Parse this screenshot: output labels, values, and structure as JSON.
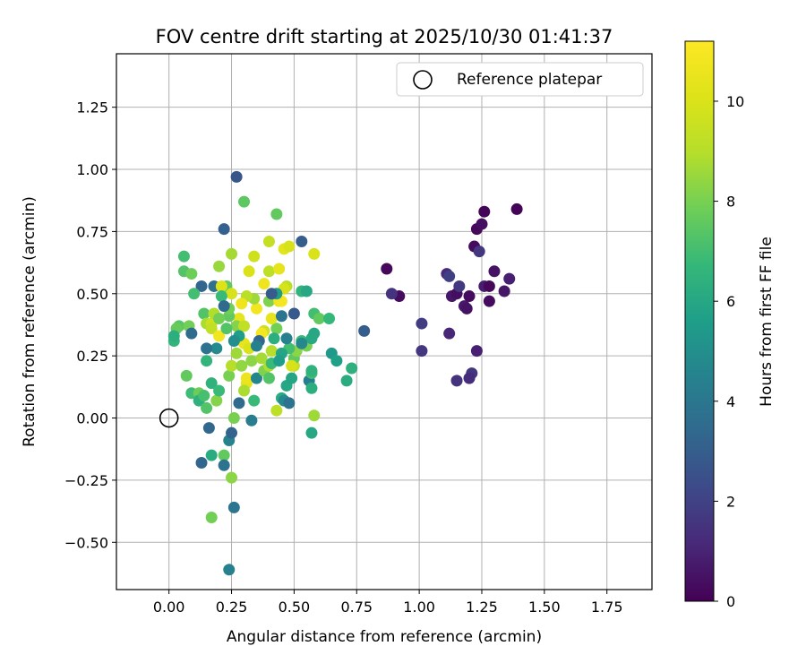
{
  "chart_data": {
    "type": "scatter",
    "title": "FOV centre drift starting at 2025/10/30 01:41:37",
    "xlabel": "Angular distance from reference (arcmin)",
    "ylabel": "Rotation from reference (arcmin)",
    "xlim": [
      -0.21,
      1.93
    ],
    "ylim": [
      -0.69,
      1.465
    ],
    "xticks": [
      0.0,
      0.25,
      0.5,
      0.75,
      1.0,
      1.25,
      1.5,
      1.75
    ],
    "xtick_labels": [
      "0.00",
      "0.25",
      "0.50",
      "0.75",
      "1.00",
      "1.25",
      "1.50",
      "1.75"
    ],
    "yticks": [
      -0.5,
      -0.25,
      0.0,
      0.25,
      0.5,
      0.75,
      1.0,
      1.25
    ],
    "ytick_labels": [
      "−0.50",
      "−0.25",
      "0.00",
      "0.25",
      "0.50",
      "0.75",
      "1.00",
      "1.25"
    ],
    "grid": true,
    "legend": {
      "label": "Reference platepar",
      "position": "top-right"
    },
    "reference": {
      "x": 0.0,
      "y": 0.0
    },
    "colorbar": {
      "label": "Hours from first FF file",
      "min": 0,
      "max": 11.2,
      "ticks": [
        0,
        2,
        4,
        6,
        8,
        10
      ],
      "tick_labels": [
        "0",
        "2",
        "4",
        "6",
        "8",
        "10"
      ],
      "colormap": "viridis"
    },
    "points": [
      [
        0.87,
        0.6,
        0.2
      ],
      [
        0.92,
        0.49,
        0.3
      ],
      [
        0.89,
        0.5,
        1.5
      ],
      [
        1.01,
        0.38,
        1.8
      ],
      [
        1.01,
        0.27,
        1.6
      ],
      [
        1.11,
        0.58,
        1.2
      ],
      [
        1.12,
        0.57,
        1.9
      ],
      [
        1.13,
        0.49,
        0.6
      ],
      [
        1.15,
        0.5,
        0.4
      ],
      [
        1.16,
        0.53,
        1.7
      ],
      [
        1.18,
        0.45,
        0.7
      ],
      [
        1.19,
        0.44,
        0.5
      ],
      [
        1.2,
        0.49,
        0.3
      ],
      [
        1.22,
        0.69,
        0.3
      ],
      [
        1.23,
        0.76,
        0.2
      ],
      [
        1.25,
        0.78,
        0.4
      ],
      [
        1.26,
        0.83,
        0.1
      ],
      [
        1.24,
        0.67,
        1.6
      ],
      [
        1.26,
        0.53,
        0.8
      ],
      [
        1.28,
        0.53,
        0.2
      ],
      [
        1.28,
        0.47,
        0.3
      ],
      [
        1.3,
        0.59,
        0.5
      ],
      [
        1.34,
        0.51,
        0.6
      ],
      [
        1.36,
        0.56,
        0.9
      ],
      [
        1.39,
        0.84,
        0.1
      ],
      [
        1.23,
        0.27,
        0.9
      ],
      [
        1.21,
        0.18,
        1.6
      ],
      [
        1.2,
        0.16,
        1.3
      ],
      [
        1.15,
        0.15,
        1.5
      ],
      [
        1.12,
        0.34,
        1.1
      ],
      [
        0.78,
        0.35,
        3.0
      ],
      [
        0.27,
        0.97,
        2.7
      ],
      [
        0.22,
        0.76,
        3.1
      ],
      [
        0.3,
        0.87,
        7.5
      ],
      [
        0.43,
        0.82,
        7.6
      ],
      [
        0.53,
        0.71,
        3.0
      ],
      [
        0.06,
        0.65,
        7.0
      ],
      [
        0.06,
        0.59,
        7.3
      ],
      [
        0.09,
        0.58,
        7.8
      ],
      [
        0.2,
        0.61,
        8.5
      ],
      [
        0.13,
        0.53,
        3.3
      ],
      [
        0.18,
        0.53,
        3.7
      ],
      [
        0.1,
        0.5,
        7.0
      ],
      [
        0.04,
        0.37,
        7.4
      ],
      [
        0.03,
        0.36,
        7.7
      ],
      [
        0.08,
        0.37,
        7.9
      ],
      [
        0.02,
        0.31,
        6.6
      ],
      [
        0.02,
        0.33,
        6.3
      ],
      [
        0.14,
        0.42,
        7.3
      ],
      [
        0.15,
        0.38,
        8.8
      ],
      [
        0.17,
        0.38,
        9.6
      ],
      [
        0.17,
        0.36,
        9.3
      ],
      [
        0.2,
        0.33,
        10.8
      ],
      [
        0.18,
        0.42,
        8.9
      ],
      [
        0.19,
        0.28,
        4.8
      ],
      [
        0.15,
        0.28,
        3.8
      ],
      [
        0.09,
        0.34,
        3.5
      ],
      [
        0.15,
        0.23,
        6.6
      ],
      [
        0.07,
        0.17,
        7.6
      ],
      [
        0.09,
        0.1,
        6.9
      ],
      [
        0.12,
        0.1,
        7.8
      ],
      [
        0.12,
        0.07,
        6.4
      ],
      [
        0.14,
        0.09,
        7.1
      ],
      [
        0.15,
        0.04,
        7.3
      ],
      [
        0.17,
        0.14,
        6.5
      ],
      [
        0.19,
        0.07,
        8.2
      ],
      [
        0.2,
        0.11,
        6.8
      ],
      [
        0.16,
        -0.04,
        3.4
      ],
      [
        0.13,
        -0.18,
        3.3
      ],
      [
        0.17,
        -0.15,
        6.2
      ],
      [
        0.22,
        -0.15,
        7.6
      ],
      [
        0.22,
        -0.19,
        3.8
      ],
      [
        0.24,
        -0.09,
        4.5
      ],
      [
        0.25,
        -0.06,
        3.2
      ],
      [
        0.17,
        -0.4,
        7.9
      ],
      [
        0.25,
        -0.24,
        8.3
      ],
      [
        0.26,
        -0.36,
        3.9
      ],
      [
        0.24,
        -0.61,
        4.4
      ],
      [
        0.26,
        0.0,
        8.0
      ],
      [
        0.28,
        0.06,
        3.5
      ],
      [
        0.33,
        -0.01,
        4.3
      ],
      [
        0.34,
        0.07,
        6.8
      ],
      [
        0.24,
        0.17,
        8.0
      ],
      [
        0.25,
        0.21,
        9.0
      ],
      [
        0.27,
        0.26,
        8.6
      ],
      [
        0.29,
        0.21,
        8.4
      ],
      [
        0.31,
        0.14,
        10.3
      ],
      [
        0.31,
        0.16,
        10.6
      ],
      [
        0.3,
        0.3,
        10.5
      ],
      [
        0.32,
        0.28,
        10.0
      ],
      [
        0.33,
        0.23,
        8.3
      ],
      [
        0.35,
        0.16,
        4.6
      ],
      [
        0.37,
        0.24,
        8.7
      ],
      [
        0.38,
        0.19,
        8.1
      ],
      [
        0.4,
        0.21,
        8.9
      ],
      [
        0.4,
        0.16,
        7.3
      ],
      [
        0.41,
        0.27,
        9.0
      ],
      [
        0.41,
        0.22,
        6.8
      ],
      [
        0.43,
        0.03,
        9.2
      ],
      [
        0.45,
        0.08,
        6.2
      ],
      [
        0.46,
        0.07,
        4.8
      ],
      [
        0.47,
        0.13,
        6.0
      ],
      [
        0.48,
        0.06,
        3.8
      ],
      [
        0.49,
        0.16,
        5.9
      ],
      [
        0.5,
        0.21,
        9.4
      ],
      [
        0.5,
        0.24,
        7.6
      ],
      [
        0.51,
        0.27,
        8.3
      ],
      [
        0.53,
        0.31,
        6.8
      ],
      [
        0.55,
        0.29,
        8.0
      ],
      [
        0.56,
        0.15,
        4.3
      ],
      [
        0.57,
        0.12,
        6.3
      ],
      [
        0.57,
        0.18,
        6.9
      ],
      [
        0.57,
        0.19,
        6.5
      ],
      [
        0.57,
        0.32,
        6.1
      ],
      [
        0.58,
        0.34,
        6.0
      ],
      [
        0.53,
        0.3,
        4.7
      ],
      [
        0.48,
        0.28,
        7.0
      ],
      [
        0.47,
        0.32,
        4.4
      ],
      [
        0.45,
        0.26,
        5.9
      ],
      [
        0.44,
        0.23,
        5.6
      ],
      [
        0.43,
        0.36,
        7.9
      ],
      [
        0.42,
        0.32,
        6.3
      ],
      [
        0.41,
        0.4,
        10.4
      ],
      [
        0.4,
        0.47,
        8.1
      ],
      [
        0.38,
        0.35,
        9.7
      ],
      [
        0.37,
        0.34,
        10.9
      ],
      [
        0.36,
        0.31,
        3.3
      ],
      [
        0.35,
        0.29,
        4.4
      ],
      [
        0.35,
        0.44,
        10.8
      ],
      [
        0.34,
        0.48,
        8.6
      ],
      [
        0.34,
        0.65,
        9.7
      ],
      [
        0.32,
        0.59,
        10.0
      ],
      [
        0.31,
        0.49,
        9.1
      ],
      [
        0.29,
        0.46,
        10.7
      ],
      [
        0.28,
        0.4,
        10.4
      ],
      [
        0.27,
        0.37,
        8.2
      ],
      [
        0.3,
        0.37,
        9.3
      ],
      [
        0.28,
        0.33,
        5.6
      ],
      [
        0.26,
        0.31,
        5.0
      ],
      [
        0.24,
        0.41,
        7.6
      ],
      [
        0.24,
        0.44,
        7.9
      ],
      [
        0.23,
        0.53,
        7.6
      ],
      [
        0.25,
        0.5,
        9.9
      ],
      [
        0.25,
        0.66,
        8.7
      ],
      [
        0.21,
        0.53,
        10.1
      ],
      [
        0.21,
        0.49,
        6.8
      ],
      [
        0.22,
        0.45,
        3.5
      ],
      [
        0.23,
        0.36,
        7.3
      ],
      [
        0.2,
        0.4,
        7.9
      ],
      [
        0.38,
        0.54,
        10.7
      ],
      [
        0.4,
        0.59,
        9.2
      ],
      [
        0.4,
        0.71,
        9.4
      ],
      [
        0.44,
        0.6,
        10.4
      ],
      [
        0.46,
        0.68,
        10.3
      ],
      [
        0.48,
        0.69,
        9.9
      ],
      [
        0.47,
        0.53,
        9.1
      ],
      [
        0.46,
        0.52,
        9.9
      ],
      [
        0.44,
        0.47,
        10.6
      ],
      [
        0.45,
        0.47,
        10.9
      ],
      [
        0.43,
        0.5,
        5.5
      ],
      [
        0.41,
        0.5,
        2.9
      ],
      [
        0.45,
        0.41,
        3.9
      ],
      [
        0.5,
        0.42,
        2.8
      ],
      [
        0.53,
        0.51,
        6.6
      ],
      [
        0.55,
        0.51,
        6.0
      ],
      [
        0.58,
        0.66,
        10.0
      ],
      [
        0.58,
        0.42,
        7.0
      ],
      [
        0.6,
        0.4,
        7.6
      ],
      [
        0.64,
        0.4,
        6.7
      ],
      [
        0.65,
        0.26,
        5.4
      ],
      [
        0.67,
        0.23,
        5.7
      ],
      [
        0.71,
        0.15,
        6.2
      ],
      [
        0.73,
        0.2,
        6.4
      ],
      [
        0.58,
        0.01,
        8.6
      ],
      [
        0.57,
        -0.06,
        6.0
      ],
      [
        0.49,
        0.21,
        9.9
      ],
      [
        0.3,
        0.11,
        8.8
      ]
    ]
  }
}
